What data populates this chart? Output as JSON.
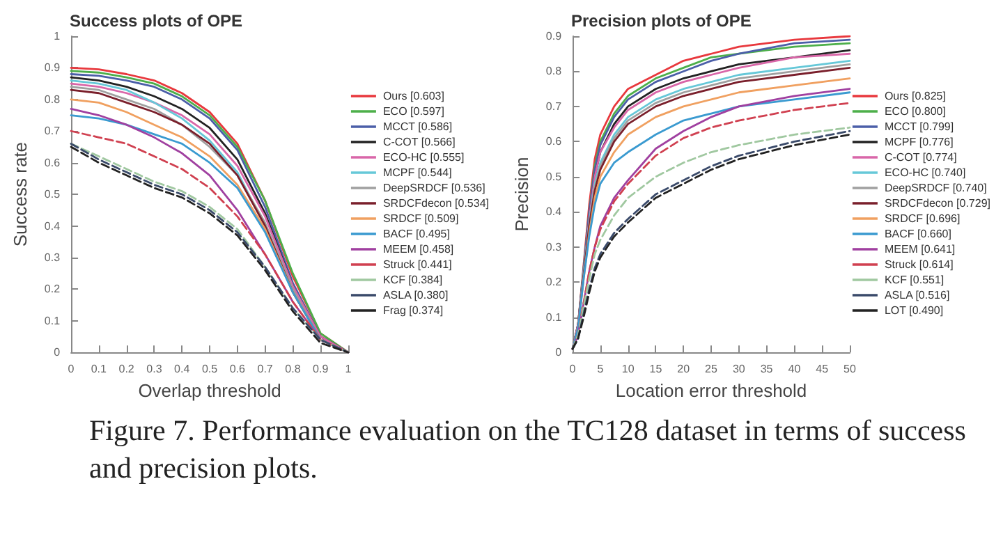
{
  "chart_data": [
    {
      "type": "line",
      "title": "Success plots of OPE",
      "xlabel": "Overlap threshold",
      "ylabel": "Success rate",
      "x": [
        0,
        0.1,
        0.2,
        0.3,
        0.4,
        0.5,
        0.6,
        0.7,
        0.8,
        0.9,
        1
      ],
      "xlim": [
        0,
        1
      ],
      "xticks": [
        0,
        0.1,
        0.2,
        0.3,
        0.4,
        0.5,
        0.6,
        0.7,
        0.8,
        0.9,
        1
      ],
      "ylim": [
        0,
        1
      ],
      "yticks": [
        0,
        0.1,
        0.2,
        0.3,
        0.4,
        0.5,
        0.6,
        0.7,
        0.8,
        0.9,
        1
      ],
      "grid": false,
      "legend": "right",
      "marker": "none",
      "annotations": [
        "Figure 7. Performance evaluation on the TC128 dataset in terms of success and precision plots."
      ],
      "series": [
        {
          "name": "Ours [0.603]",
          "color": "#e8383d",
          "values": [
            0.9,
            0.895,
            0.88,
            0.86,
            0.82,
            0.76,
            0.66,
            0.48,
            0.24,
            0.06,
            0
          ]
        },
        {
          "name": "ECO [0.597]",
          "color": "#4daf4a",
          "values": [
            0.89,
            0.885,
            0.87,
            0.85,
            0.81,
            0.75,
            0.65,
            0.48,
            0.25,
            0.06,
            0
          ]
        },
        {
          "name": "MCCT [0.586]",
          "color": "#4b5fa8",
          "values": [
            0.88,
            0.875,
            0.86,
            0.84,
            0.8,
            0.74,
            0.64,
            0.46,
            0.22,
            0.05,
            0
          ]
        },
        {
          "name": "C-COT [0.566]",
          "color": "#222222",
          "values": [
            0.87,
            0.86,
            0.84,
            0.81,
            0.77,
            0.71,
            0.61,
            0.44,
            0.21,
            0.05,
            0
          ]
        },
        {
          "name": "ECO-HC [0.555]",
          "color": "#d966a8",
          "values": [
            0.85,
            0.84,
            0.82,
            0.79,
            0.75,
            0.69,
            0.59,
            0.43,
            0.21,
            0.05,
            0
          ]
        },
        {
          "name": "MCPF [0.544]",
          "color": "#66c8d8",
          "values": [
            0.86,
            0.85,
            0.83,
            0.79,
            0.74,
            0.67,
            0.57,
            0.4,
            0.19,
            0.04,
            0
          ]
        },
        {
          "name": "DeepSRDCF [0.536]",
          "color": "#a0a0a0",
          "values": [
            0.84,
            0.83,
            0.8,
            0.77,
            0.72,
            0.65,
            0.56,
            0.41,
            0.2,
            0.04,
            0
          ]
        },
        {
          "name": "SRDCFdecon [0.534]",
          "color": "#7a1f2b",
          "values": [
            0.83,
            0.82,
            0.79,
            0.76,
            0.72,
            0.66,
            0.56,
            0.4,
            0.19,
            0.04,
            0
          ]
        },
        {
          "name": "SRDCF [0.509]",
          "color": "#f0a060",
          "values": [
            0.8,
            0.79,
            0.76,
            0.72,
            0.68,
            0.62,
            0.53,
            0.39,
            0.19,
            0.04,
            0
          ]
        },
        {
          "name": "BACF [0.495]",
          "color": "#3a9ad0",
          "values": [
            0.75,
            0.74,
            0.72,
            0.69,
            0.66,
            0.6,
            0.52,
            0.38,
            0.19,
            0.04,
            0
          ]
        },
        {
          "name": "MEEM [0.458]",
          "color": "#a040a0",
          "values": [
            0.77,
            0.75,
            0.72,
            0.68,
            0.63,
            0.56,
            0.45,
            0.31,
            0.16,
            0.04,
            0
          ]
        },
        {
          "name": "Struck [0.441]",
          "color": "#d04050",
          "line_style": "dashed",
          "values": [
            0.7,
            0.68,
            0.66,
            0.62,
            0.58,
            0.52,
            0.43,
            0.31,
            0.16,
            0.04,
            0
          ]
        },
        {
          "name": "KCF [0.384]",
          "color": "#a0c8a0",
          "line_style": "dashed",
          "values": [
            0.66,
            0.62,
            0.58,
            0.54,
            0.51,
            0.46,
            0.39,
            0.27,
            0.14,
            0.04,
            0
          ]
        },
        {
          "name": "ASLA [0.380]",
          "color": "#3a4a6a",
          "line_style": "dashed",
          "values": [
            0.66,
            0.61,
            0.57,
            0.53,
            0.5,
            0.45,
            0.38,
            0.27,
            0.14,
            0.04,
            0
          ]
        },
        {
          "name": "Frag [0.374]",
          "color": "#222222",
          "line_style": "dashed",
          "values": [
            0.65,
            0.6,
            0.56,
            0.52,
            0.49,
            0.44,
            0.37,
            0.26,
            0.13,
            0.03,
            0
          ]
        }
      ]
    },
    {
      "type": "line",
      "title": "Precision plots of OPE",
      "xlabel": "Location error threshold",
      "ylabel": "Precision",
      "x": [
        0,
        1,
        2,
        3,
        4,
        5,
        7.5,
        10,
        15,
        20,
        25,
        30,
        40,
        50
      ],
      "xlim": [
        0,
        50
      ],
      "xticks": [
        0,
        5,
        10,
        15,
        20,
        25,
        30,
        35,
        40,
        45,
        50
      ],
      "ylim": [
        0,
        0.9
      ],
      "yticks": [
        0,
        0.1,
        0.2,
        0.3,
        0.4,
        0.5,
        0.6,
        0.7,
        0.8,
        0.9
      ],
      "grid": false,
      "legend": "right",
      "marker": "none",
      "series": [
        {
          "name": "Ours [0.825]",
          "color": "#e8383d",
          "values": [
            0.01,
            0.08,
            0.25,
            0.42,
            0.55,
            0.62,
            0.7,
            0.75,
            0.79,
            0.83,
            0.85,
            0.87,
            0.89,
            0.9
          ]
        },
        {
          "name": "ECO [0.800]",
          "color": "#4daf4a",
          "values": [
            0.01,
            0.08,
            0.24,
            0.4,
            0.53,
            0.6,
            0.68,
            0.73,
            0.78,
            0.81,
            0.84,
            0.85,
            0.87,
            0.88
          ]
        },
        {
          "name": "MCCT [0.799]",
          "color": "#4b5fa8",
          "values": [
            0.01,
            0.08,
            0.24,
            0.4,
            0.52,
            0.59,
            0.67,
            0.72,
            0.77,
            0.8,
            0.83,
            0.85,
            0.88,
            0.89
          ]
        },
        {
          "name": "MCPF [0.776]",
          "color": "#222222",
          "values": [
            0.01,
            0.08,
            0.23,
            0.38,
            0.5,
            0.57,
            0.65,
            0.7,
            0.75,
            0.78,
            0.8,
            0.82,
            0.84,
            0.86
          ]
        },
        {
          "name": "C-COT [0.774]",
          "color": "#d966a8",
          "values": [
            0.01,
            0.08,
            0.23,
            0.38,
            0.5,
            0.57,
            0.64,
            0.69,
            0.74,
            0.77,
            0.79,
            0.81,
            0.84,
            0.85
          ]
        },
        {
          "name": "ECO-HC [0.740]",
          "color": "#66c8d8",
          "values": [
            0.01,
            0.07,
            0.23,
            0.37,
            0.48,
            0.54,
            0.62,
            0.67,
            0.72,
            0.75,
            0.77,
            0.79,
            0.81,
            0.83
          ]
        },
        {
          "name": "DeepSRDCF [0.740]",
          "color": "#a0a0a0",
          "values": [
            0.01,
            0.07,
            0.22,
            0.36,
            0.47,
            0.53,
            0.61,
            0.66,
            0.71,
            0.74,
            0.76,
            0.78,
            0.8,
            0.82
          ]
        },
        {
          "name": "SRDCFdecon [0.729]",
          "color": "#7a1f2b",
          "values": [
            0.01,
            0.07,
            0.22,
            0.36,
            0.46,
            0.52,
            0.6,
            0.65,
            0.7,
            0.73,
            0.75,
            0.77,
            0.79,
            0.81
          ]
        },
        {
          "name": "SRDCF [0.696]",
          "color": "#f0a060",
          "values": [
            0.01,
            0.07,
            0.21,
            0.34,
            0.44,
            0.5,
            0.57,
            0.62,
            0.67,
            0.7,
            0.72,
            0.74,
            0.76,
            0.78
          ]
        },
        {
          "name": "BACF [0.660]",
          "color": "#3a9ad0",
          "values": [
            0.01,
            0.07,
            0.21,
            0.33,
            0.42,
            0.48,
            0.54,
            0.57,
            0.62,
            0.66,
            0.68,
            0.7,
            0.72,
            0.74
          ]
        },
        {
          "name": "MEEM [0.641]",
          "color": "#a040a0",
          "values": [
            0.01,
            0.05,
            0.14,
            0.23,
            0.3,
            0.36,
            0.44,
            0.49,
            0.58,
            0.63,
            0.67,
            0.7,
            0.73,
            0.75
          ]
        },
        {
          "name": "Struck [0.614]",
          "color": "#d04050",
          "line_style": "dashed",
          "values": [
            0.01,
            0.05,
            0.14,
            0.23,
            0.3,
            0.35,
            0.43,
            0.48,
            0.56,
            0.61,
            0.64,
            0.66,
            0.69,
            0.71
          ]
        },
        {
          "name": "KCF [0.551]",
          "color": "#a0c8a0",
          "line_style": "dashed",
          "values": [
            0.01,
            0.05,
            0.13,
            0.21,
            0.28,
            0.32,
            0.39,
            0.44,
            0.5,
            0.54,
            0.57,
            0.59,
            0.62,
            0.64
          ]
        },
        {
          "name": "ASLA [0.516]",
          "color": "#3a4a6a",
          "line_style": "dashed",
          "values": [
            0.01,
            0.04,
            0.11,
            0.18,
            0.24,
            0.28,
            0.34,
            0.38,
            0.45,
            0.49,
            0.53,
            0.56,
            0.6,
            0.63
          ]
        },
        {
          "name": "LOT [0.490]",
          "color": "#222222",
          "line_style": "dashed",
          "values": [
            0.01,
            0.04,
            0.1,
            0.17,
            0.23,
            0.27,
            0.33,
            0.37,
            0.44,
            0.48,
            0.52,
            0.55,
            0.59,
            0.62
          ]
        }
      ]
    }
  ]
}
